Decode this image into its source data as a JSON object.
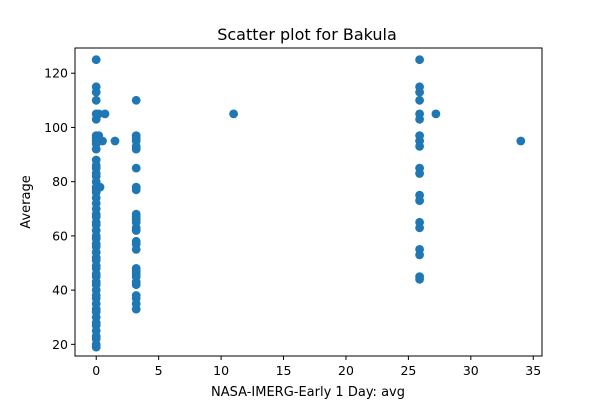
{
  "chart_data": {
    "type": "scatter",
    "title": "Scatter plot for Bakula",
    "xlabel": "NASA-IMERG-Early 1 Day: avg",
    "ylabel": "Average",
    "xlim": [
      -1.7,
      35.7
    ],
    "ylim": [
      15.7,
      129.3
    ],
    "xticks": [
      0,
      5,
      10,
      15,
      20,
      25,
      30,
      35
    ],
    "yticks": [
      20,
      40,
      60,
      80,
      100,
      120
    ],
    "grid": false,
    "legend": "none",
    "color": "#1f77b4",
    "series": [
      {
        "points": [
          [
            0,
            125
          ],
          [
            0,
            115
          ],
          [
            0,
            113
          ],
          [
            0,
            110
          ],
          [
            0,
            105
          ],
          [
            0,
            103
          ],
          [
            0,
            97
          ],
          [
            0,
            96
          ],
          [
            0,
            95
          ],
          [
            0,
            94
          ],
          [
            0,
            92
          ],
          [
            0,
            88
          ],
          [
            0,
            86
          ],
          [
            0,
            85
          ],
          [
            0,
            83
          ],
          [
            0,
            82
          ],
          [
            0,
            80
          ],
          [
            0,
            78
          ],
          [
            0,
            77
          ],
          [
            0,
            76
          ],
          [
            0,
            74
          ],
          [
            0,
            72
          ],
          [
            0,
            70
          ],
          [
            0,
            68
          ],
          [
            0,
            67
          ],
          [
            0,
            65
          ],
          [
            0,
            64
          ],
          [
            0,
            62
          ],
          [
            0,
            60
          ],
          [
            0,
            59
          ],
          [
            0,
            57
          ],
          [
            0,
            56
          ],
          [
            0,
            54
          ],
          [
            0,
            52
          ],
          [
            0,
            51
          ],
          [
            0,
            49
          ],
          [
            0,
            48
          ],
          [
            0,
            46
          ],
          [
            0,
            45
          ],
          [
            0,
            43
          ],
          [
            0,
            42
          ],
          [
            0,
            40
          ],
          [
            0,
            38
          ],
          [
            0,
            37
          ],
          [
            0,
            35
          ],
          [
            0,
            33
          ],
          [
            0,
            32
          ],
          [
            0,
            30
          ],
          [
            0,
            28
          ],
          [
            0,
            27
          ],
          [
            0,
            25
          ],
          [
            0,
            23
          ],
          [
            0,
            22
          ],
          [
            0,
            20
          ],
          [
            0,
            19
          ],
          [
            0.2,
            105
          ],
          [
            0.2,
            97
          ],
          [
            0.2,
            95
          ],
          [
            0.3,
            78
          ],
          [
            0.7,
            105
          ],
          [
            0.5,
            95
          ],
          [
            1.5,
            95
          ],
          [
            3.2,
            110
          ],
          [
            3.2,
            97
          ],
          [
            3.2,
            96
          ],
          [
            3.2,
            95
          ],
          [
            3.2,
            93
          ],
          [
            3.2,
            92
          ],
          [
            3.2,
            85
          ],
          [
            3.2,
            78
          ],
          [
            3.2,
            77
          ],
          [
            3.2,
            68
          ],
          [
            3.2,
            67
          ],
          [
            3.2,
            66
          ],
          [
            3.2,
            65
          ],
          [
            3.2,
            63
          ],
          [
            3.2,
            62
          ],
          [
            3.2,
            58
          ],
          [
            3.2,
            57
          ],
          [
            3.2,
            55
          ],
          [
            3.2,
            48
          ],
          [
            3.2,
            47
          ],
          [
            3.2,
            46
          ],
          [
            3.2,
            45
          ],
          [
            3.2,
            43
          ],
          [
            3.2,
            42
          ],
          [
            3.2,
            38
          ],
          [
            3.2,
            37
          ],
          [
            3.2,
            35
          ],
          [
            3.2,
            33
          ],
          [
            11,
            105
          ],
          [
            25.9,
            125
          ],
          [
            25.9,
            115
          ],
          [
            25.9,
            113
          ],
          [
            25.9,
            110
          ],
          [
            25.9,
            105
          ],
          [
            25.9,
            103
          ],
          [
            25.9,
            97
          ],
          [
            25.9,
            95
          ],
          [
            25.9,
            93
          ],
          [
            25.9,
            85
          ],
          [
            25.9,
            83
          ],
          [
            25.9,
            75
          ],
          [
            25.9,
            73
          ],
          [
            25.9,
            65
          ],
          [
            25.9,
            63
          ],
          [
            25.9,
            55
          ],
          [
            25.9,
            53
          ],
          [
            25.9,
            45
          ],
          [
            25.9,
            44
          ],
          [
            27.2,
            105
          ],
          [
            34,
            95
          ]
        ]
      }
    ]
  }
}
